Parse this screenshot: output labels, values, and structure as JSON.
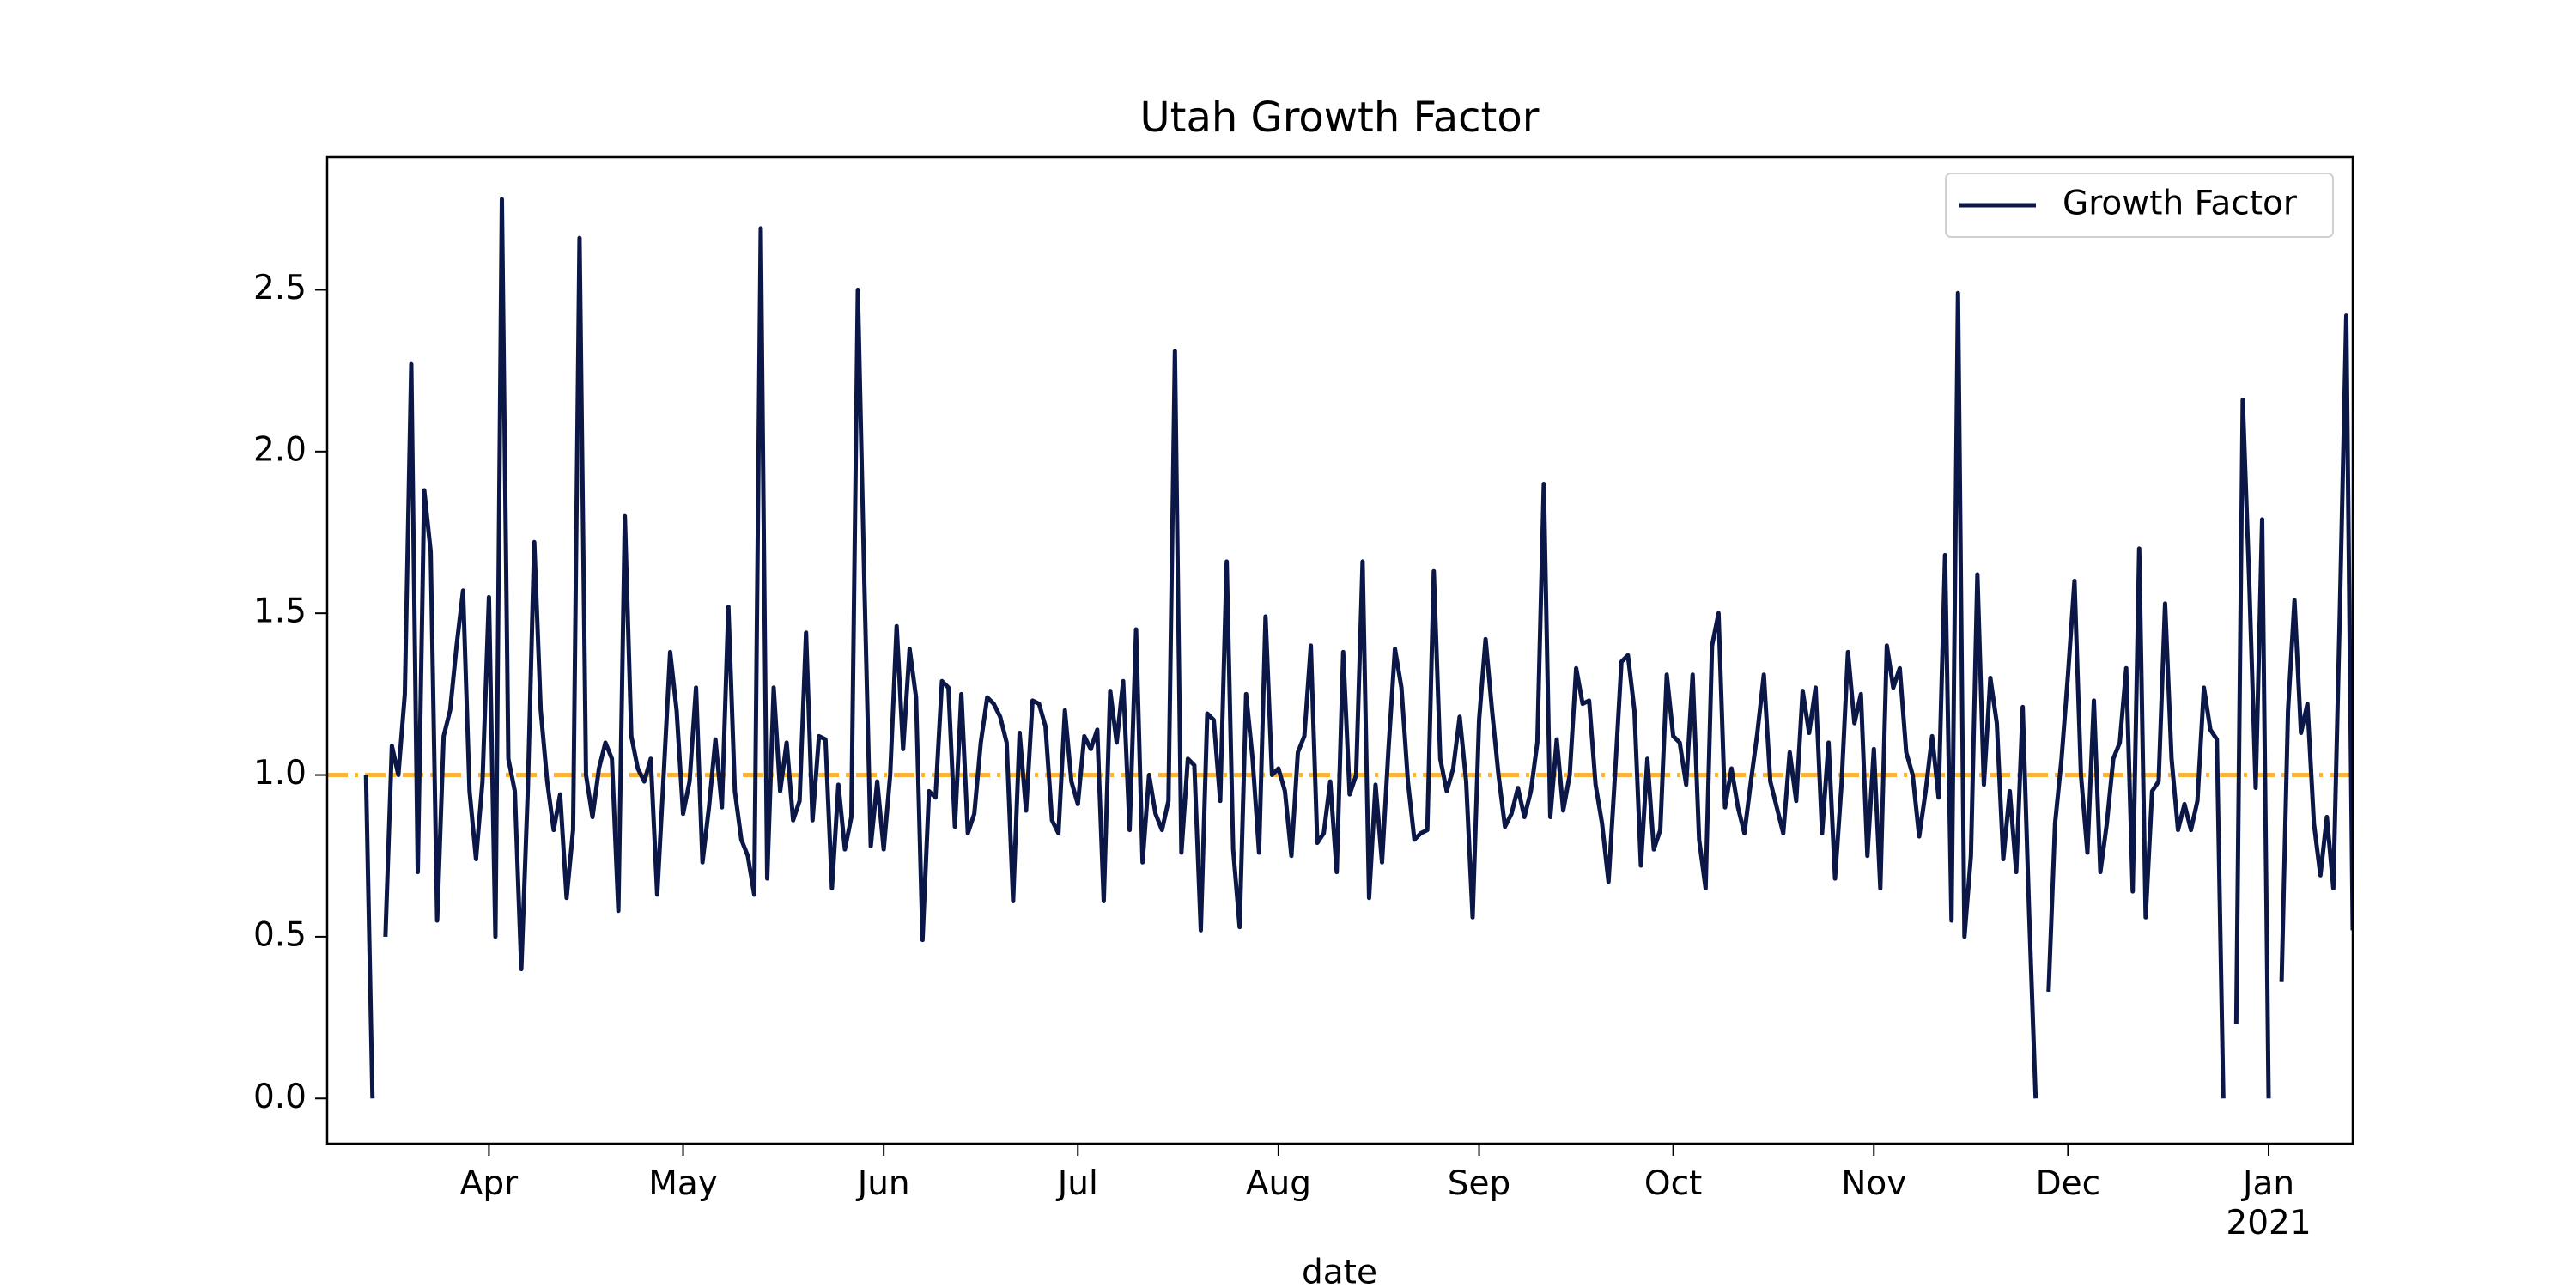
{
  "chart_data": {
    "type": "line",
    "title": "Utah Growth Factor",
    "x_label": "date",
    "x": [
      73,
      74,
      75,
      76,
      77,
      78,
      79,
      80,
      81,
      82,
      83,
      84,
      85,
      86,
      87,
      88,
      89,
      90,
      91,
      92,
      93,
      94,
      95,
      96,
      97,
      98,
      99,
      100,
      101,
      102,
      103,
      104,
      105,
      106,
      107,
      108,
      109,
      110,
      111,
      112,
      113,
      114,
      115,
      116,
      117,
      118,
      119,
      120,
      121,
      122,
      123,
      124,
      125,
      126,
      127,
      128,
      129,
      130,
      131,
      132,
      133,
      134,
      135,
      136,
      137,
      138,
      139,
      140,
      141,
      142,
      143,
      144,
      145,
      146,
      147,
      148,
      149,
      150,
      151,
      152,
      153,
      154,
      155,
      156,
      157,
      158,
      159,
      160,
      161,
      162,
      163,
      164,
      165,
      166,
      167,
      168,
      169,
      170,
      171,
      172,
      173,
      174,
      175,
      176,
      177,
      178,
      179,
      180,
      181,
      182,
      183,
      184,
      185,
      186,
      187,
      188,
      189,
      190,
      191,
      192,
      193,
      194,
      195,
      196,
      197,
      198,
      199,
      200,
      201,
      202,
      203,
      204,
      205,
      206,
      207,
      208,
      209,
      210,
      211,
      212,
      213,
      214,
      215,
      216,
      217,
      218,
      219,
      220,
      221,
      222,
      223,
      224,
      225,
      226,
      227,
      228,
      229,
      230,
      231,
      232,
      233,
      234,
      235,
      236,
      237,
      238,
      239,
      240,
      241,
      242,
      243,
      244,
      245,
      246,
      247,
      248,
      249,
      250,
      251,
      252,
      253,
      254,
      255,
      256,
      257,
      258,
      259,
      260,
      261,
      262,
      263,
      264,
      265,
      266,
      267,
      268,
      269,
      270,
      271,
      272,
      273,
      274,
      275,
      276,
      277,
      278,
      279,
      280,
      281,
      282,
      283,
      284,
      285,
      286,
      287,
      288,
      289,
      290,
      291,
      292,
      293,
      294,
      295,
      296,
      297,
      298,
      299,
      300,
      301,
      302,
      303,
      304,
      305,
      306,
      307,
      308,
      309,
      310,
      311,
      312,
      313,
      314,
      315,
      316,
      317,
      318,
      319,
      320,
      321,
      322,
      323,
      324,
      325,
      326,
      327,
      328,
      329,
      330,
      331,
      332,
      333,
      334,
      335,
      336,
      337,
      338,
      339,
      340,
      341,
      342,
      343,
      344,
      345,
      346,
      347,
      348,
      349,
      350,
      351,
      352,
      353,
      354,
      355,
      356,
      357,
      358,
      359,
      360,
      361,
      362,
      363,
      364,
      365,
      366,
      367,
      368,
      369,
      370,
      371,
      372,
      373,
      374,
      375,
      376,
      377,
      378,
      379,
      380
    ],
    "series": [
      {
        "name": "Growth Factor",
        "color": "#0b1747",
        "values": [
          1.0,
          0.0,
          null,
          0.5,
          1.09,
          1.0,
          1.25,
          2.27,
          0.7,
          1.88,
          1.69,
          0.55,
          1.12,
          1.2,
          1.4,
          1.57,
          0.95,
          0.74,
          0.98,
          1.55,
          0.5,
          2.78,
          1.05,
          0.95,
          0.4,
          0.95,
          1.72,
          1.2,
          0.98,
          0.83,
          0.94,
          0.62,
          0.83,
          2.66,
          1.0,
          0.87,
          1.02,
          1.1,
          1.05,
          0.58,
          1.8,
          1.12,
          1.02,
          0.98,
          1.05,
          0.63,
          1.0,
          1.38,
          1.2,
          0.88,
          0.98,
          1.27,
          0.73,
          0.9,
          1.11,
          0.9,
          1.52,
          0.95,
          0.8,
          0.75,
          0.63,
          2.69,
          0.68,
          1.27,
          0.95,
          1.1,
          0.86,
          0.92,
          1.44,
          0.86,
          1.12,
          1.11,
          0.65,
          0.97,
          0.77,
          0.87,
          2.5,
          1.6,
          0.78,
          0.98,
          0.77,
          1.0,
          1.46,
          1.08,
          1.39,
          1.24,
          0.49,
          0.95,
          0.93,
          1.29,
          1.27,
          0.84,
          1.25,
          0.82,
          0.88,
          1.1,
          1.24,
          1.22,
          1.18,
          1.1,
          0.61,
          1.13,
          0.89,
          1.23,
          1.22,
          1.15,
          0.86,
          0.82,
          1.2,
          0.98,
          0.91,
          1.12,
          1.08,
          1.14,
          0.61,
          1.26,
          1.1,
          1.29,
          0.83,
          1.45,
          0.73,
          1.0,
          0.88,
          0.83,
          0.92,
          2.31,
          0.76,
          1.05,
          1.03,
          0.52,
          1.19,
          1.17,
          0.92,
          1.66,
          0.77,
          0.53,
          1.25,
          1.05,
          0.76,
          1.49,
          1.0,
          1.02,
          0.95,
          0.75,
          1.07,
          1.12,
          1.4,
          0.79,
          0.82,
          0.98,
          0.7,
          1.38,
          0.94,
          1.0,
          1.66,
          0.62,
          0.97,
          0.73,
          1.08,
          1.39,
          1.27,
          0.98,
          0.8,
          0.82,
          0.83,
          1.63,
          1.05,
          0.95,
          1.02,
          1.18,
          0.98,
          0.56,
          1.17,
          1.42,
          1.2,
          1.0,
          0.84,
          0.88,
          0.96,
          0.87,
          0.95,
          1.1,
          1.9,
          0.87,
          1.11,
          0.89,
          1.0,
          1.33,
          1.22,
          1.23,
          0.97,
          0.85,
          0.67,
          1.0,
          1.35,
          1.37,
          1.2,
          0.72,
          1.05,
          0.77,
          0.83,
          1.31,
          1.12,
          1.1,
          0.97,
          1.31,
          0.8,
          0.65,
          1.4,
          1.5,
          0.9,
          1.02,
          0.9,
          0.82,
          0.98,
          1.13,
          1.31,
          0.98,
          0.9,
          0.82,
          1.07,
          0.92,
          1.26,
          1.13,
          1.27,
          0.82,
          1.1,
          0.68,
          0.97,
          1.38,
          1.16,
          1.25,
          0.75,
          1.08,
          0.65,
          1.4,
          1.27,
          1.33,
          1.07,
          1.0,
          0.81,
          0.95,
          1.12,
          0.93,
          1.68,
          0.55,
          2.49,
          0.5,
          0.75,
          1.62,
          0.97,
          1.3,
          1.16,
          0.74,
          0.95,
          0.7,
          1.21,
          0.57,
          0.0,
          null,
          0.33,
          0.85,
          1.05,
          1.31,
          1.6,
          1.0,
          0.76,
          1.23,
          0.7,
          0.85,
          1.05,
          1.1,
          1.33,
          0.64,
          1.7,
          0.56,
          0.95,
          0.98,
          1.53,
          1.05,
          0.83,
          0.91,
          0.83,
          0.92,
          1.27,
          1.14,
          1.11,
          0.0,
          null,
          0.23,
          2.16,
          1.6,
          0.96,
          1.79,
          0.0,
          null,
          0.36,
          1.2,
          1.54,
          1.13,
          1.22,
          0.85,
          0.69,
          0.87,
          0.65,
          1.5,
          2.42,
          0.52
        ]
      }
    ],
    "reference_line": {
      "value": 1,
      "color": "#fbb33a"
    },
    "xlim": [
      67,
      380
    ],
    "xticks": [
      {
        "value": 92,
        "label": "Apr"
      },
      {
        "value": 122,
        "label": "May"
      },
      {
        "value": 153,
        "label": "Jun"
      },
      {
        "value": 183,
        "label": "Jul"
      },
      {
        "value": 214,
        "label": "Aug"
      },
      {
        "value": 245,
        "label": "Sep"
      },
      {
        "value": 275,
        "label": "Oct"
      },
      {
        "value": 306,
        "label": "Nov"
      },
      {
        "value": 336,
        "label": "Dec"
      },
      {
        "value": 367,
        "label": "Jan\n2021"
      }
    ],
    "ylim": [
      -0.14,
      2.91
    ],
    "yticks": [
      {
        "value": 0,
        "label": "0.0"
      },
      {
        "value": 0.5,
        "label": "0.5"
      },
      {
        "value": 1,
        "label": "1.0"
      },
      {
        "value": 1.5,
        "label": "1.5"
      },
      {
        "value": 2,
        "label": "2.0"
      },
      {
        "value": 2.5,
        "label": "2.5"
      }
    ],
    "legend": "upper right",
    "grid": false
  }
}
